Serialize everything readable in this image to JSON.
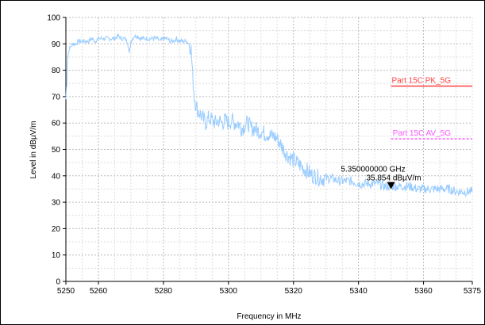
{
  "chart_data": {
    "type": "line",
    "title": "",
    "xlabel": "Frequency in MHz",
    "ylabel": "Level in dBµV/m",
    "xlim": [
      5250,
      5375
    ],
    "ylim": [
      0,
      100
    ],
    "x_ticks": [
      5250,
      5260,
      5280,
      5300,
      5320,
      5340,
      5360,
      5375
    ],
    "y_ticks": [
      0,
      10,
      20,
      30,
      40,
      50,
      60,
      70,
      80,
      90,
      100
    ],
    "grid": true,
    "series": [
      {
        "color": "#99ccff",
        "x": [
          5250.0,
          5250.3,
          5250.6,
          5251.0,
          5251.5,
          5252.0,
          5253.0,
          5254.0,
          5255.0,
          5256.0,
          5257.0,
          5258.0,
          5259.0,
          5260.0,
          5261.0,
          5262.0,
          5263.0,
          5264.0,
          5265.0,
          5266.0,
          5267.0,
          5268.0,
          5269.0,
          5269.5,
          5270.0,
          5270.5,
          5271.0,
          5272.0,
          5273.0,
          5274.0,
          5275.0,
          5276.0,
          5277.0,
          5278.0,
          5279.0,
          5280.0,
          5281.0,
          5282.0,
          5283.0,
          5284.0,
          5285.0,
          5286.0,
          5287.0,
          5288.0,
          5288.5,
          5289.0,
          5289.5,
          5290.0,
          5290.5,
          5291.0,
          5292.0,
          5293.0,
          5294.0,
          5295.0,
          5296.0,
          5297.0,
          5298.0,
          5299.0,
          5300.0,
          5301.0,
          5302.0,
          5303.0,
          5304.0,
          5305.0,
          5306.0,
          5307.0,
          5308.0,
          5309.0,
          5310.0,
          5311.0,
          5312.0,
          5313.0,
          5314.0,
          5315.0,
          5316.0,
          5317.0,
          5318.0,
          5319.0,
          5320.0,
          5321.0,
          5322.0,
          5323.0,
          5324.0,
          5325.0,
          5326.0,
          5327.0,
          5328.0,
          5329.0,
          5330.0,
          5332.0,
          5334.0,
          5336.0,
          5338.0,
          5340.0,
          5342.0,
          5344.0,
          5346.0,
          5348.0,
          5350.0,
          5352.0,
          5354.0,
          5356.0,
          5358.0,
          5360.0,
          5362.0,
          5364.0,
          5366.0,
          5368.0,
          5370.0,
          5372.0,
          5374.0,
          5375.0
        ],
        "y": [
          69,
          76,
          85,
          88,
          89,
          90,
          90,
          91,
          91,
          91,
          91,
          92,
          91,
          92,
          92,
          92,
          92,
          92,
          92,
          93,
          92,
          92,
          91,
          86,
          91,
          92,
          93,
          93,
          92,
          92,
          92,
          92,
          92,
          92,
          91,
          92,
          92,
          91,
          91,
          92,
          91,
          91,
          91,
          90,
          88,
          78,
          70,
          67,
          65,
          64,
          62,
          60,
          62,
          61,
          60,
          61,
          60,
          61,
          60,
          61,
          60,
          60,
          58,
          59,
          60,
          58,
          58,
          57,
          57,
          56,
          56,
          55,
          55,
          54,
          52,
          50,
          48,
          47,
          46,
          45,
          44,
          43,
          42,
          41,
          40,
          40,
          39,
          39,
          39,
          39,
          38,
          38,
          38,
          37,
          37,
          37,
          37,
          36,
          36,
          36,
          36,
          36,
          35,
          35,
          35,
          35,
          35,
          35,
          34,
          34,
          34,
          34
        ]
      },
      {
        "name": "Part 15C PK_5G",
        "color": "#ff4040",
        "x": [
          5350,
          5375
        ],
        "y": [
          74,
          74
        ]
      },
      {
        "name": "Part 15C AV_5G",
        "color": "#ff55ff",
        "x": [
          5350,
          5375
        ],
        "y": [
          54,
          54
        ],
        "dashed": true
      }
    ],
    "marker": {
      "x": 5350,
      "y": 35.854,
      "label_line1": "5.350000000 GHz",
      "label_line2": "35.854 dBµV/m"
    }
  }
}
